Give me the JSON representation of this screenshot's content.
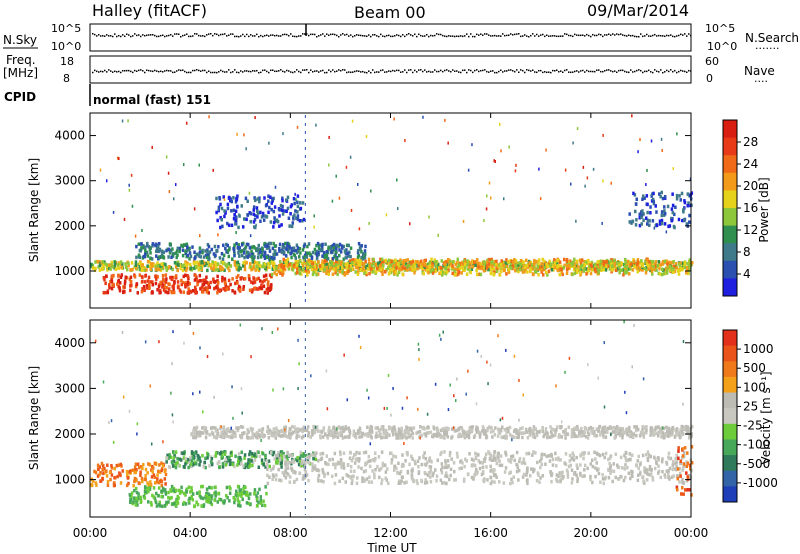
{
  "header": {
    "station": "Halley (fitACF)",
    "beam": "Beam 00",
    "date": "09/Mar/2014"
  },
  "left_labels": {
    "nsky": "N.Sky",
    "freq": "Freq.",
    "freq_unit": "[MHz]",
    "cpid": "CPID"
  },
  "right_labels": {
    "nsearch": "N.Search",
    "nave": "Nave"
  },
  "cpid_text": "normal (fast) 151",
  "noise_axis": {
    "left_ticks": [
      "10^5",
      "10^0"
    ],
    "right_ticks": [
      "10^5",
      "10^0"
    ]
  },
  "freq_axis": {
    "left_ticks": [
      "18",
      "8"
    ],
    "right_ticks": [
      "60",
      "0"
    ]
  },
  "time_axis": {
    "title": "Time UT",
    "ticks": [
      "00:00",
      "04:00",
      "08:00",
      "12:00",
      "16:00",
      "20:00",
      "00:00"
    ]
  },
  "chart_data": [
    {
      "type": "heatmap",
      "title": "",
      "xlabel": "Time UT",
      "ylabel": "Slant Range [km]",
      "ylim": [
        180,
        4500
      ],
      "y_ticks": [
        "1000",
        "2000",
        "3000",
        "4000"
      ],
      "colorbar_label": "Power [dB]",
      "colorbar_ticks": [
        "4",
        "8",
        "12",
        "16",
        "20",
        "24",
        "28"
      ],
      "colorbar_colors": [
        "#1f1fe0",
        "#2a4fb0",
        "#3f7a8a",
        "#2e8f4e",
        "#8fc73a",
        "#e6d21a",
        "#f39a1a",
        "#f06a18",
        "#e83a16",
        "#d81e10"
      ],
      "bands": [
        {
          "t": [
            0,
            24
          ],
          "r": [
            1050,
            1250
          ],
          "level": [
            3,
            6
          ]
        },
        {
          "t": [
            0.5,
            7.2
          ],
          "r": [
            550,
            950
          ],
          "level": [
            7,
            9
          ]
        },
        {
          "t": [
            7.2,
            24
          ],
          "r": [
            950,
            1300
          ],
          "level": [
            4,
            7
          ]
        },
        {
          "t": [
            1.8,
            11
          ],
          "r": [
            1300,
            1650
          ],
          "level": [
            1,
            3
          ]
        },
        {
          "t": [
            5,
            8.5
          ],
          "r": [
            2000,
            2700
          ],
          "level": [
            0,
            2
          ]
        },
        {
          "t": [
            21.5,
            24
          ],
          "r": [
            2000,
            2800
          ],
          "level": [
            0,
            2
          ]
        }
      ]
    },
    {
      "type": "heatmap",
      "title": "",
      "xlabel": "Time UT",
      "ylabel": "Slant Range [km]",
      "ylim": [
        180,
        4500
      ],
      "y_ticks": [
        "1000",
        "2000",
        "3000",
        "4000"
      ],
      "colorbar_label": "Velocity [m s⁻¹]",
      "colorbar_ticks": [
        "1000",
        "500",
        "100",
        "25",
        "-25",
        "-100",
        "-500",
        "-1000"
      ],
      "colorbar_colors": [
        "#1f3fb8",
        "#3464a8",
        "#2f7a5a",
        "#48a85a",
        "#6ccc3a",
        "#c8c8c0",
        "#bcbcb4",
        "#f3a11a",
        "#f07a1a",
        "#eb5418",
        "#e2301a"
      ],
      "bands": [
        {
          "t": [
            0,
            3
          ],
          "r": [
            900,
            1400
          ],
          "level": [
            7,
            9
          ]
        },
        {
          "t": [
            1.5,
            7
          ],
          "r": [
            450,
            900
          ],
          "level": [
            3,
            4
          ]
        },
        {
          "t": [
            3,
            9
          ],
          "r": [
            1300,
            1650
          ],
          "level": [
            2,
            5
          ]
        },
        {
          "t": [
            7,
            24
          ],
          "r": [
            950,
            1650
          ],
          "level": [
            5,
            6
          ]
        },
        {
          "t": [
            4,
            24
          ],
          "r": [
            1950,
            2200
          ],
          "level": [
            5,
            6
          ]
        },
        {
          "t": [
            23.3,
            24
          ],
          "r": [
            700,
            1800
          ],
          "level": [
            8,
            10
          ]
        }
      ]
    }
  ]
}
